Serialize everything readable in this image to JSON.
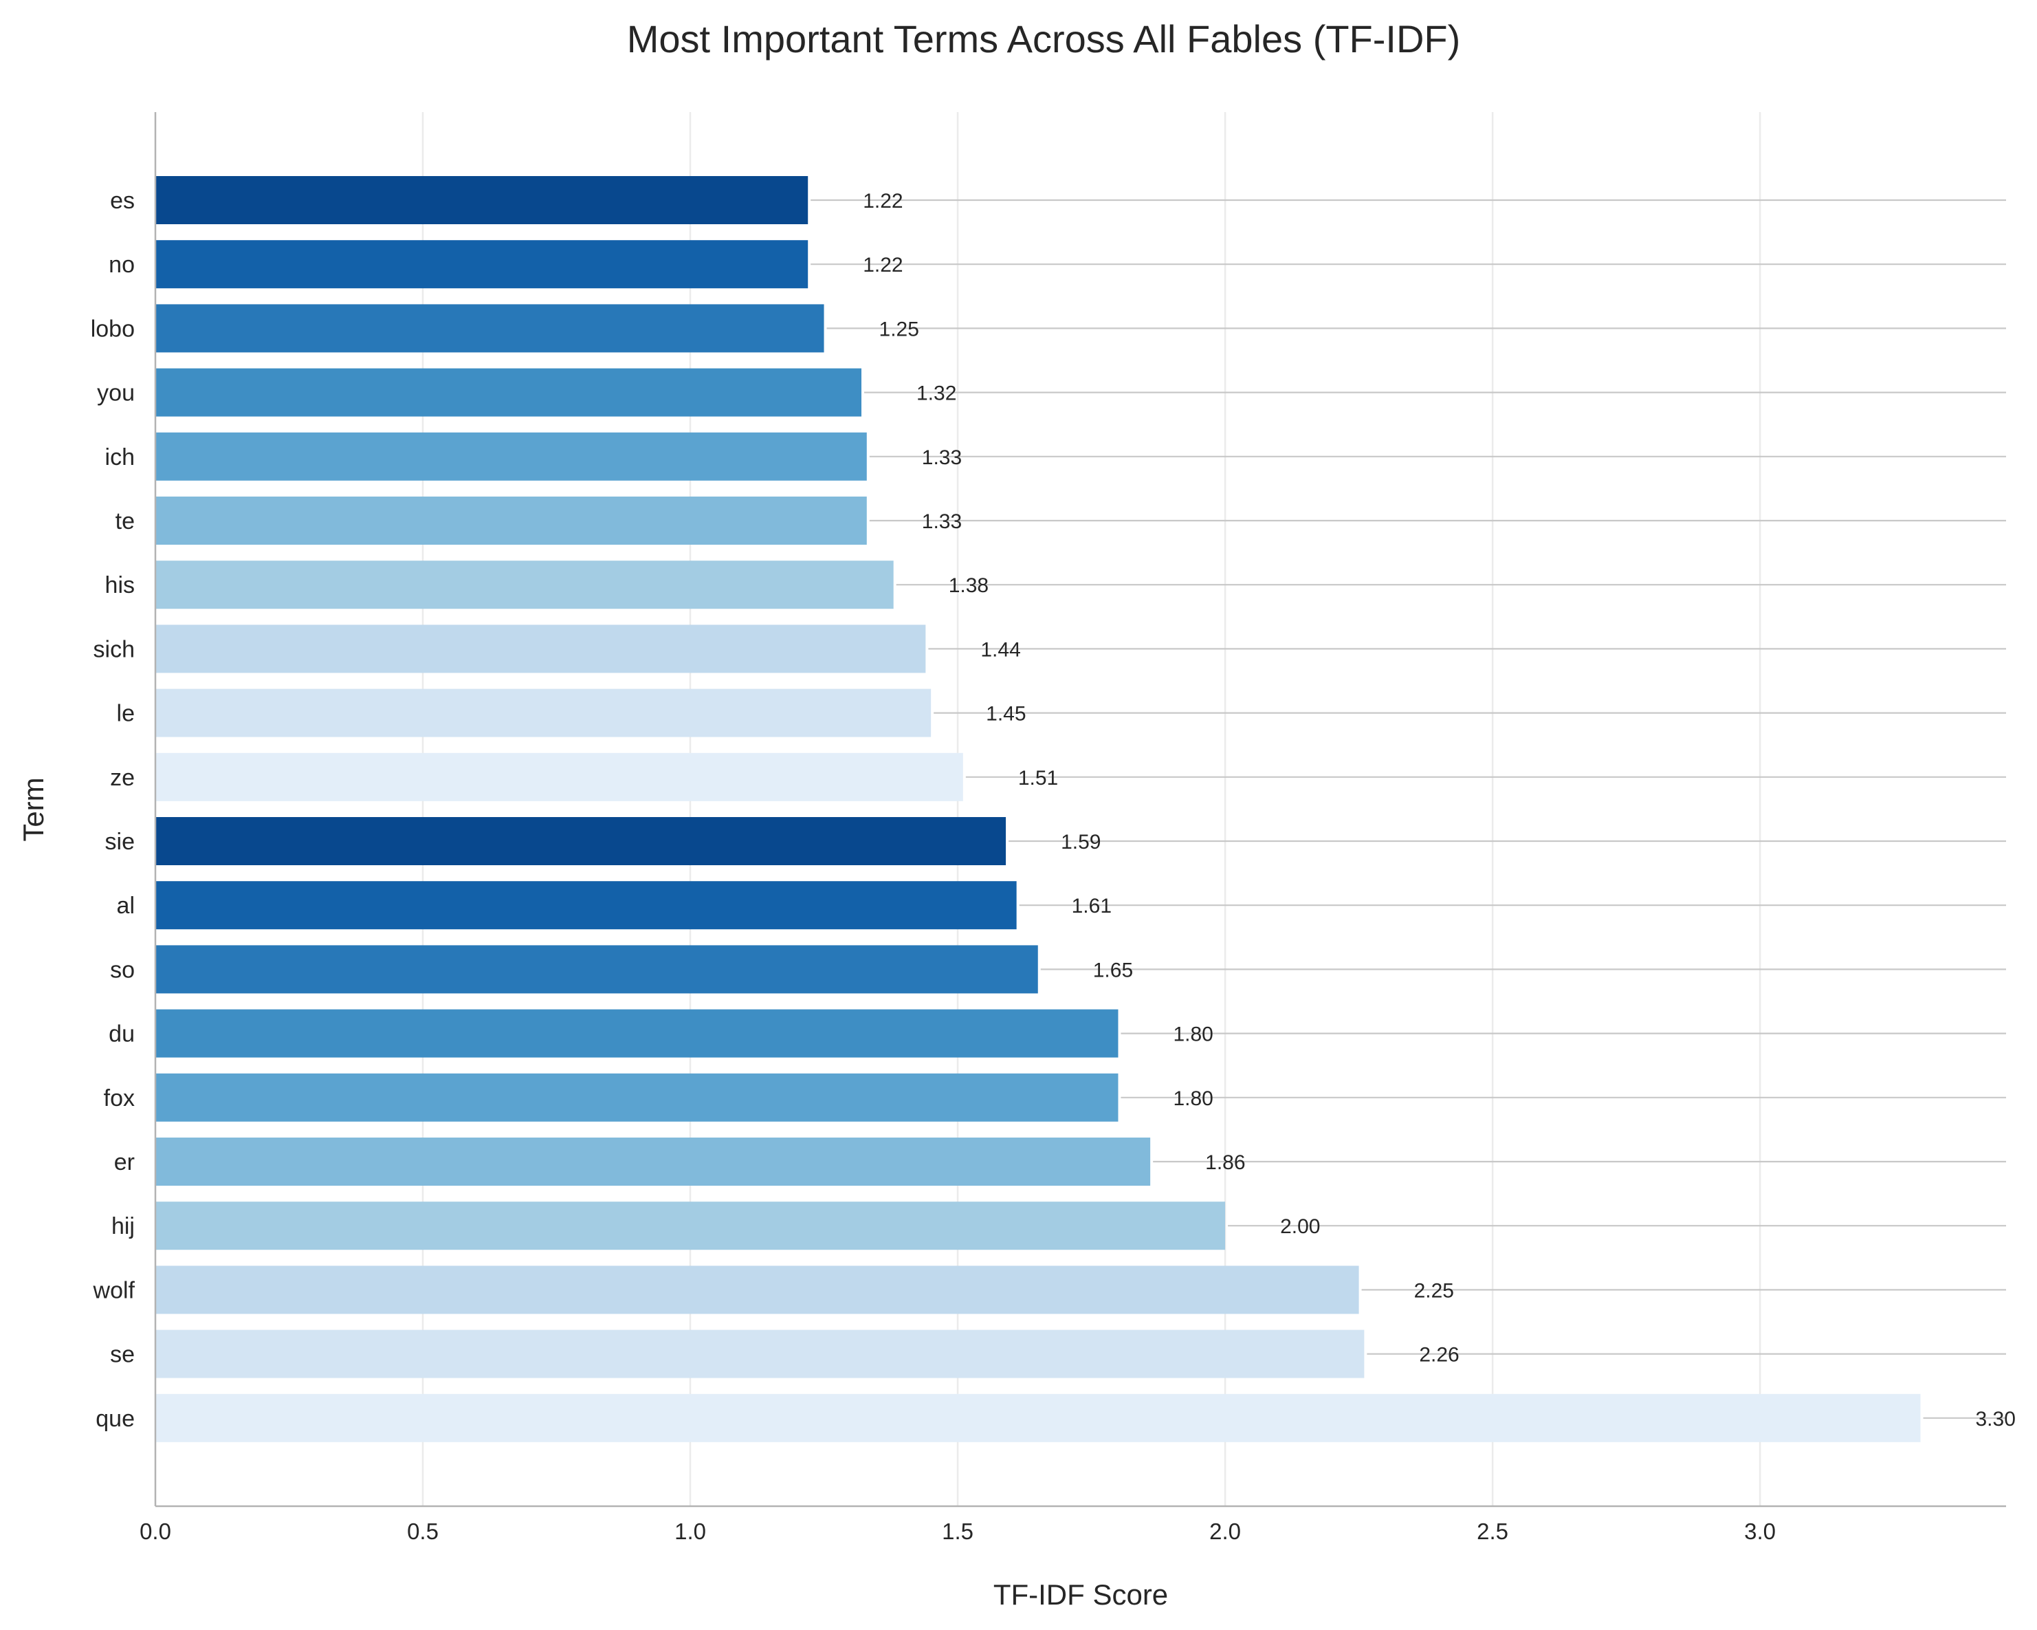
{
  "chart_data": {
    "type": "bar",
    "orientation": "horizontal",
    "title": "Most Important Terms Across All Fables (TF-IDF)",
    "xlabel": "TF-IDF Score",
    "ylabel": "Term",
    "xlim": [
      0,
      3.46
    ],
    "xticks": [
      0.0,
      0.5,
      1.0,
      1.5,
      2.0,
      2.5,
      3.0
    ],
    "xtick_labels": [
      "0.0",
      "0.5",
      "1.0",
      "1.5",
      "2.0",
      "2.5",
      "3.0"
    ],
    "grid": "vertical",
    "categories": [
      "es",
      "no",
      "lobo",
      "you",
      "ich",
      "te",
      "his",
      "sich",
      "le",
      "ze",
      "sie",
      "al",
      "so",
      "du",
      "fox",
      "er",
      "hij",
      "wolf",
      "se",
      "que"
    ],
    "values": [
      1.22,
      1.22,
      1.25,
      1.32,
      1.33,
      1.33,
      1.38,
      1.44,
      1.45,
      1.51,
      1.59,
      1.61,
      1.65,
      1.8,
      1.8,
      1.86,
      2.0,
      2.25,
      2.26,
      3.3
    ],
    "value_labels": [
      "1.22",
      "1.22",
      "1.25",
      "1.32",
      "1.33",
      "1.33",
      "1.38",
      "1.44",
      "1.45",
      "1.51",
      "1.59",
      "1.61",
      "1.65",
      "1.80",
      "1.80",
      "1.86",
      "2.00",
      "2.25",
      "2.26",
      "3.30"
    ],
    "colors": [
      "#08488e",
      "#1361a9",
      "#2878b8",
      "#3e8ec4",
      "#5ba3d0",
      "#81badb",
      "#a3cce3",
      "#c0d9ed",
      "#d3e4f3",
      "#e3eef9",
      "#08488e",
      "#1361a9",
      "#2878b8",
      "#3e8ec4",
      "#5ba3d0",
      "#81badb",
      "#a3cce3",
      "#c0d9ed",
      "#d3e4f3",
      "#e3eef9"
    ]
  }
}
